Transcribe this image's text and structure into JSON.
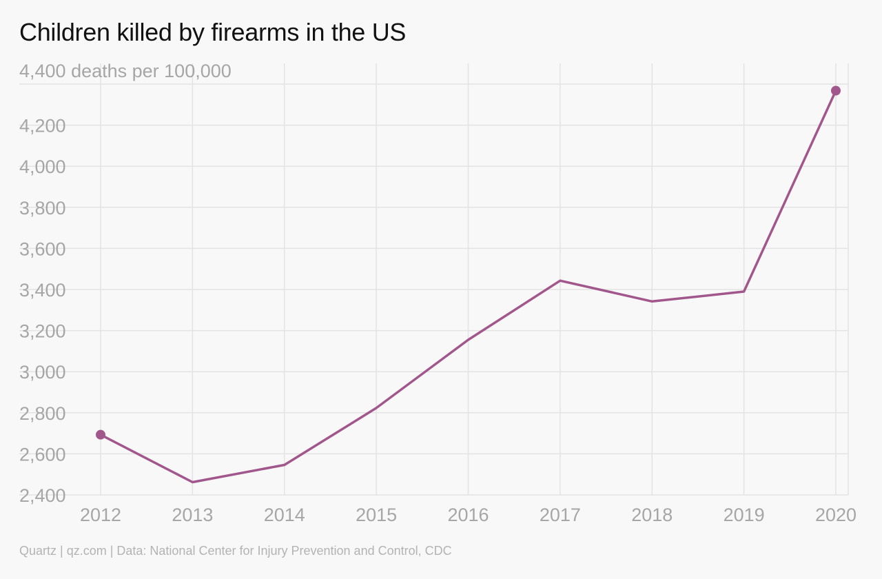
{
  "title": "Children killed by firearms in the US",
  "source": "Quartz | qz.com | Data: National Center for Injury Prevention and Control, CDC",
  "colors": {
    "line": "#a2578c",
    "grid": "#e3e3e3",
    "tick_text": "#a6a6a6",
    "background": "#f8f8f8"
  },
  "chart_data": {
    "type": "line",
    "title": "Children killed by firearms in the US",
    "y_unit_label": "4,400 deaths per 100,000",
    "x": [
      "2012",
      "2013",
      "2014",
      "2015",
      "2016",
      "2017",
      "2018",
      "2019",
      "2020"
    ],
    "series": [
      {
        "values": [
          2693,
          2462,
          2546,
          2823,
          3155,
          3443,
          3342,
          3390,
          4368
        ]
      }
    ],
    "ylim": [
      2400,
      4400
    ],
    "y_ticks": [
      "4,400",
      "4,200",
      "4,000",
      "3,800",
      "3,600",
      "3,400",
      "3,200",
      "3,000",
      "2,800",
      "2,600",
      "2,400"
    ],
    "grid": true,
    "endpoint_markers": true
  }
}
